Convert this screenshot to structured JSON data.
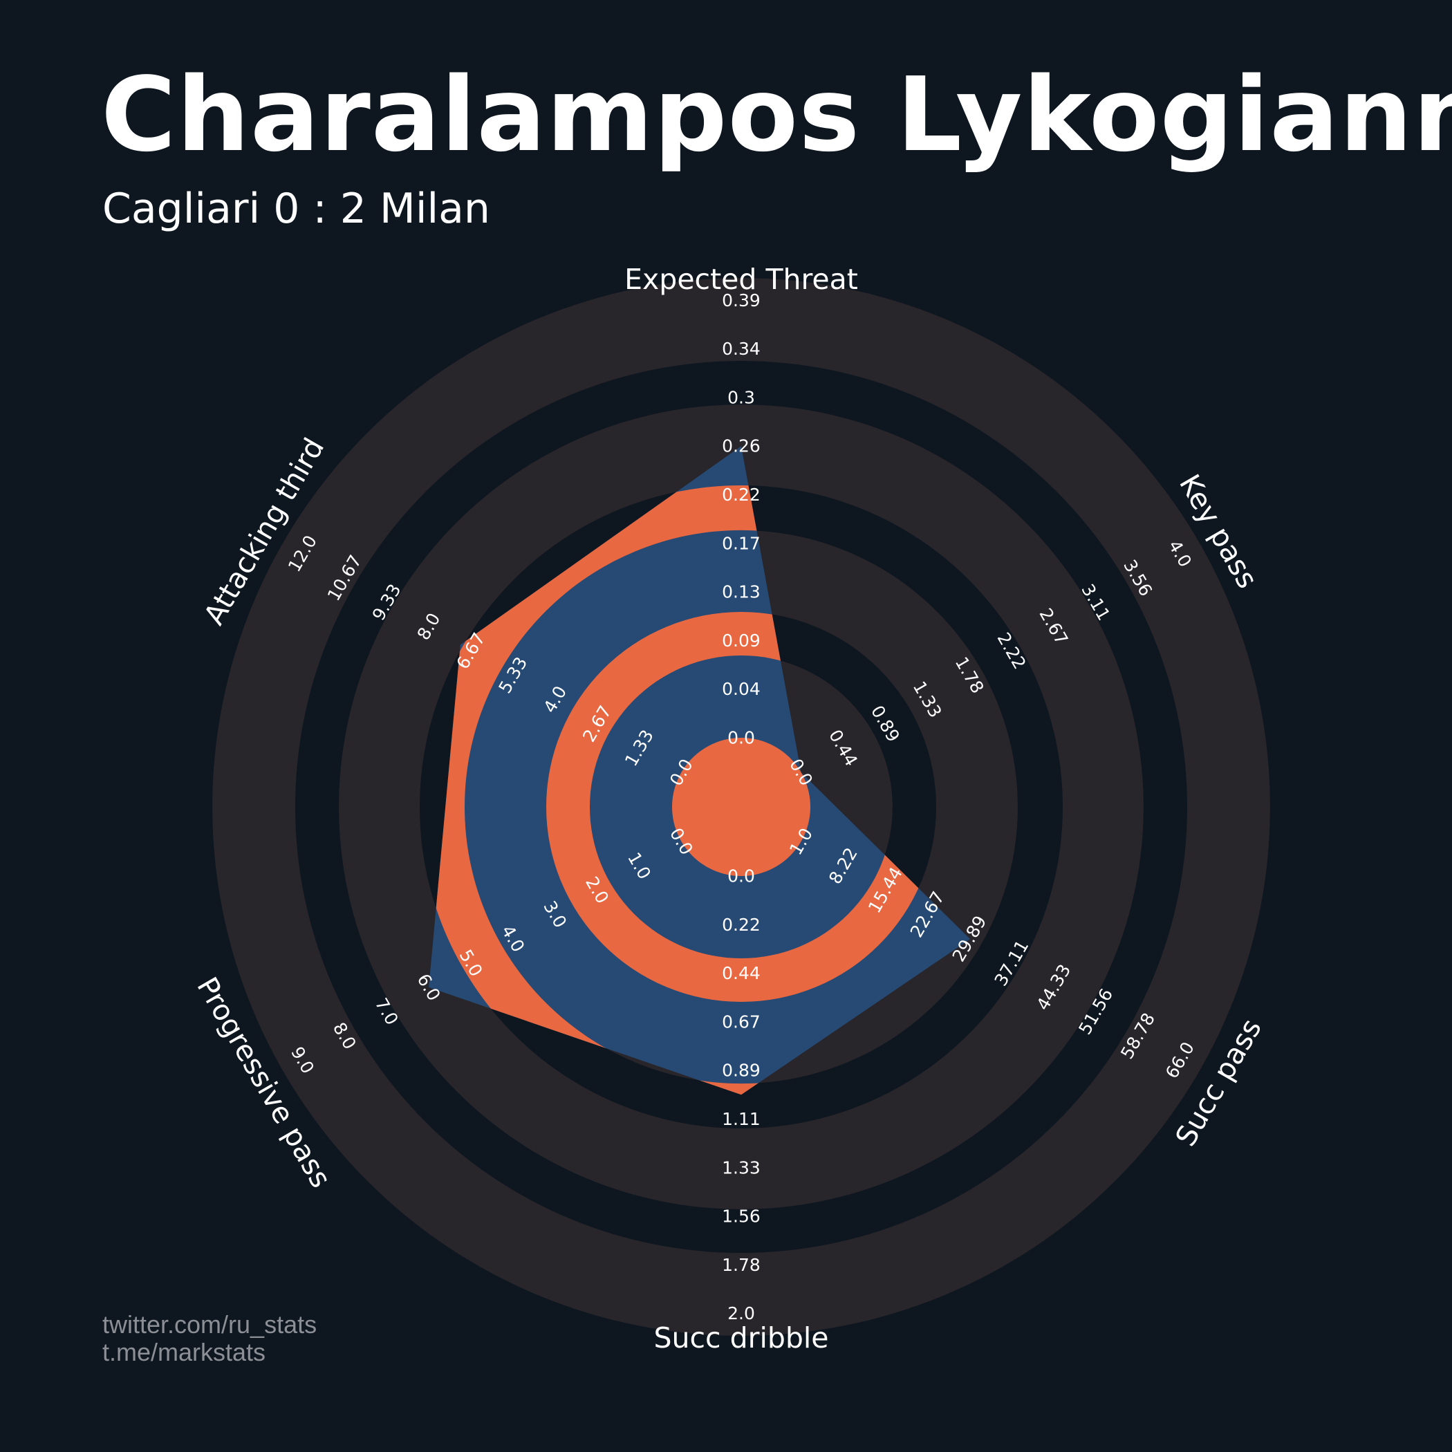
{
  "title": "Charalampos Lykogiann",
  "subtitle": "Cagliari 0 : 2 Milan",
  "credits": [
    "twitter.com/ru_stats",
    "t.me/markstats"
  ],
  "colors": {
    "background": "#0e1720",
    "ring_dark": "#0e1720",
    "ring_light": "#28252b",
    "polygon_fill": "#264a73",
    "polygon_highlight": "#e86842",
    "text": "#ffffff",
    "credit_text": "#8c8f95"
  },
  "chart_data": {
    "type": "radar",
    "params": [
      {
        "label": "Expected Threat",
        "min": 0.0,
        "max": 0.39,
        "value": 0.26,
        "ticks": [
          "0.0",
          "0.04",
          "0.09",
          "0.13",
          "0.17",
          "0.22",
          "0.26",
          "0.3",
          "0.34",
          "0.39"
        ]
      },
      {
        "label": "Key pass",
        "min": 0.0,
        "max": 4.0,
        "value": 0.0,
        "ticks": [
          "0.0",
          "0.44",
          "0.89",
          "1.33",
          "1.78",
          "2.22",
          "2.67",
          "3.11",
          "3.56",
          "4.0"
        ]
      },
      {
        "label": "Succ pass",
        "min": 1.0,
        "max": 66.0,
        "value": 30,
        "ticks": [
          "1.0",
          "8.22",
          "15.44",
          "22.67",
          "29.89",
          "37.11",
          "44.33",
          "51.56",
          "58.78",
          "66.0"
        ]
      },
      {
        "label": "Succ dribble",
        "min": 0.0,
        "max": 2.0,
        "value": 1.0,
        "ticks": [
          "0.0",
          "0.22",
          "0.44",
          "0.67",
          "0.89",
          "1.11",
          "1.33",
          "1.56",
          "1.78",
          "2.0"
        ]
      },
      {
        "label": "Progressive pass",
        "min": 0.0,
        "max": 9.0,
        "value": 6.0,
        "ticks": [
          "0.0",
          "1.0",
          "2.0",
          "3.0",
          "4.0",
          "5.0",
          "6.0",
          "7.0",
          "8.0",
          "9.0"
        ]
      },
      {
        "label": "Attacking third",
        "min": 0.0,
        "max": 12.0,
        "value": 7.0,
        "ticks": [
          "0.0",
          "1.33",
          "2.67",
          "4.0",
          "5.33",
          "6.67",
          "8.0",
          "9.33",
          "10.67",
          "12.0"
        ]
      }
    ]
  }
}
